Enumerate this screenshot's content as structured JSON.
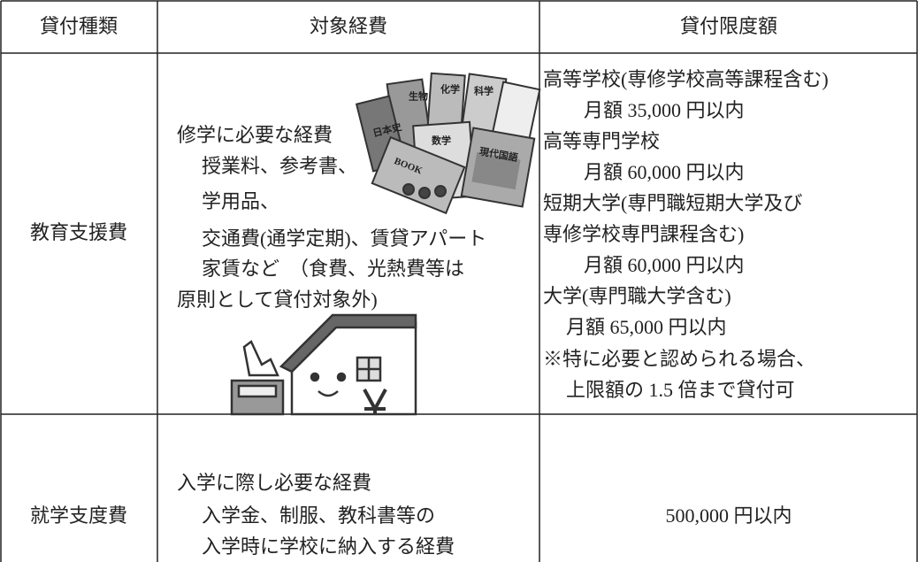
{
  "table": {
    "header": [
      "貸付種類",
      "対象経費",
      "貸付限度額"
    ],
    "rows": [
      {
        "type": "教育支援費",
        "expenses": [
          "修学に必要な経費",
          "授業料、参考書、",
          "学用品、",
          "交通費(通学定期)、賃貸アパート",
          "家賃など　（食費、光熱費等は",
          "原則として貸付対象外)"
        ],
        "limits": [
          "高等学校(専修学校高等課程含む)",
          "月額 35,000 円以内",
          "高等専門学校",
          "月額 60,000 円以内",
          "短期大学(専門職短期大学及び",
          "専修学校専門課程含む)",
          "月額 60,000 円以内",
          "大学(専門職大学含む)",
          "月額 65,000 円以内",
          "※特に必要と認められる場合、",
          "上限額の 1.5 倍まで貸付可"
        ]
      },
      {
        "type": "就学支度費",
        "expenses": [
          "入学に際し必要な経費",
          "入学金、制服、教科書等の",
          "入学時に学校に納入する経費"
        ],
        "limits": [
          "500,000 円以内"
        ]
      }
    ]
  },
  "illustration": {
    "books": [
      "日本史",
      "生物",
      "化学",
      "科学",
      "数学",
      "BOOK",
      "現代国語"
    ]
  }
}
